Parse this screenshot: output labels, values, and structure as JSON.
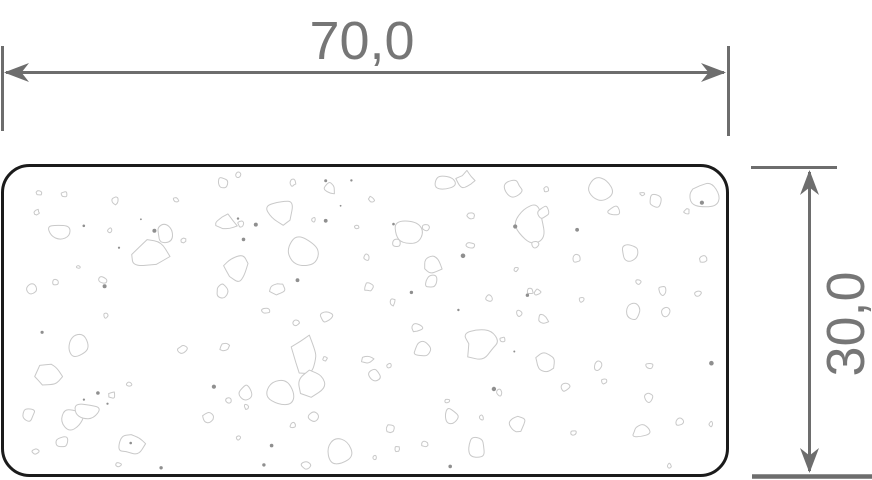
{
  "drawing": {
    "width_label": "70,0",
    "height_label": "30,0"
  },
  "style": {
    "background": "#ffffff",
    "dimension_color": "#6d6d6d",
    "label_color": "#767676",
    "outline_color": "#1b1b1b",
    "texture_stroke": "#c9c9c9",
    "texture_dot": "#8f8f8f"
  },
  "texture": {
    "seed": 1337,
    "grid_cols": 19,
    "grid_rows": 9,
    "fill_probability": 0.72,
    "dot_count": 34
  }
}
